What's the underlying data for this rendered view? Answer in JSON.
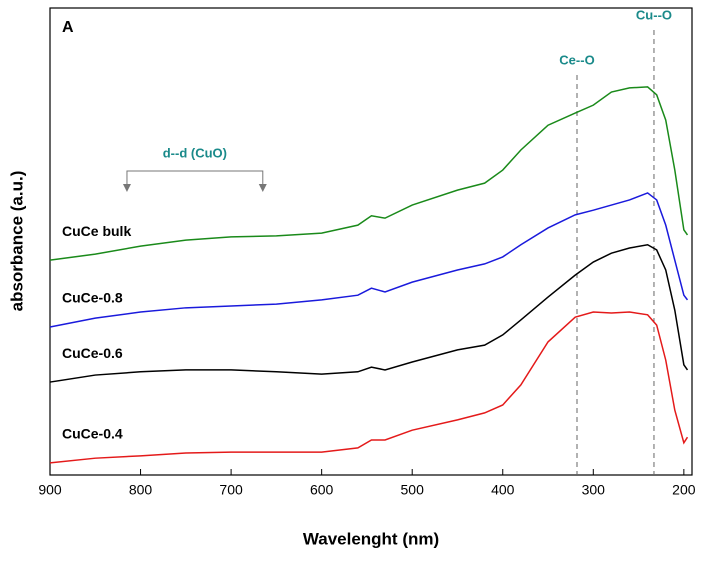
{
  "chart_data": {
    "type": "line",
    "panel_label": "A",
    "x_label": "Wavelenght (nm)",
    "y_label": "absorbance (a.u.)",
    "xlim": [
      900,
      191
    ],
    "ylim": [
      0,
      100
    ],
    "xticks": [
      900,
      800,
      700,
      600,
      500,
      400,
      300,
      200
    ],
    "x": [
      900,
      850,
      800,
      750,
      700,
      650,
      600,
      560,
      545,
      530,
      500,
      450,
      420,
      400,
      380,
      350,
      320,
      300,
      280,
      260,
      240,
      230,
      220,
      210,
      200,
      196
    ],
    "series": [
      {
        "name": "CuCe bulk",
        "color": "#1a8a1a",
        "values": [
          46.0,
          47.3,
          49.0,
          50.3,
          51.0,
          51.2,
          51.8,
          53.5,
          55.5,
          55.0,
          57.8,
          61.0,
          62.5,
          65.3,
          69.6,
          74.9,
          77.5,
          79.2,
          82.0,
          82.9,
          83.1,
          81.4,
          76.0,
          65.3,
          52.5,
          51.4
        ]
      },
      {
        "name": "CuCe-0.8",
        "color": "#1a1adc",
        "values": [
          31.7,
          33.6,
          34.9,
          35.8,
          36.2,
          36.6,
          37.5,
          38.5,
          40.0,
          39.2,
          41.3,
          43.9,
          45.2,
          46.7,
          49.3,
          52.9,
          55.7,
          56.7,
          57.8,
          58.9,
          60.4,
          58.9,
          53.5,
          46.0,
          38.5,
          37.5
        ]
      },
      {
        "name": "CuCe-0.6",
        "color": "#000000",
        "values": [
          19.9,
          21.4,
          22.1,
          22.5,
          22.5,
          22.1,
          21.6,
          22.1,
          23.1,
          22.5,
          24.2,
          26.8,
          27.8,
          30.0,
          33.2,
          38.1,
          42.8,
          45.6,
          47.5,
          48.6,
          49.3,
          48.2,
          43.9,
          35.3,
          23.6,
          22.5
        ]
      },
      {
        "name": "CuCe-0.4",
        "color": "#e41a1a",
        "values": [
          2.6,
          3.6,
          4.1,
          4.7,
          4.9,
          4.9,
          4.9,
          5.8,
          7.5,
          7.5,
          9.6,
          11.8,
          13.3,
          15.0,
          19.3,
          28.5,
          33.8,
          34.9,
          34.7,
          34.9,
          34.3,
          32.1,
          24.6,
          13.9,
          6.9,
          8.1
        ]
      }
    ],
    "vlines": [
      {
        "text": "Ce--O",
        "x": 318
      },
      {
        "text": "Cu--O",
        "x": 233
      }
    ],
    "bracket": {
      "text": "d--d (CuO)",
      "x_range": [
        815,
        665
      ]
    },
    "annotation_color": "#1a8a8a"
  }
}
